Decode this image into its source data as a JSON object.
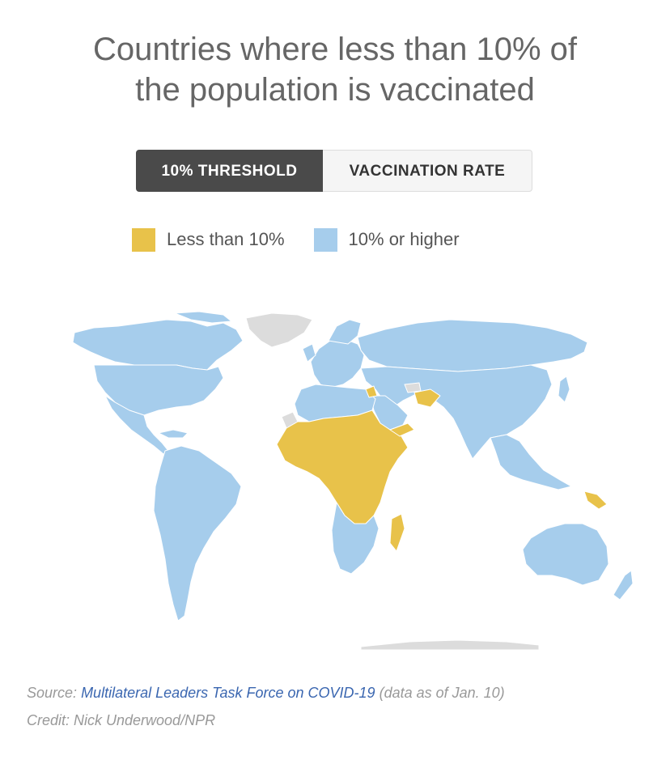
{
  "header": {
    "title_line1": "Countries where less than 10% of",
    "title_line2": "the population is vaccinated"
  },
  "toggle": {
    "threshold_label": "10% THRESHOLD",
    "rate_label": "VACCINATION RATE",
    "active": "threshold"
  },
  "legend": {
    "items": [
      {
        "label": "Less than 10%",
        "color": "#e8c24a"
      },
      {
        "label": "10% or higher",
        "color": "#a6cdec"
      }
    ],
    "no_data_color": "#dcdcdc"
  },
  "footer": {
    "source_prefix": "Source:",
    "source_link": "Multilateral Leaders Task Force on COVID-19",
    "source_suffix": "(data as of Jan. 10)",
    "credit": "Credit: Nick Underwood/NPR"
  }
}
